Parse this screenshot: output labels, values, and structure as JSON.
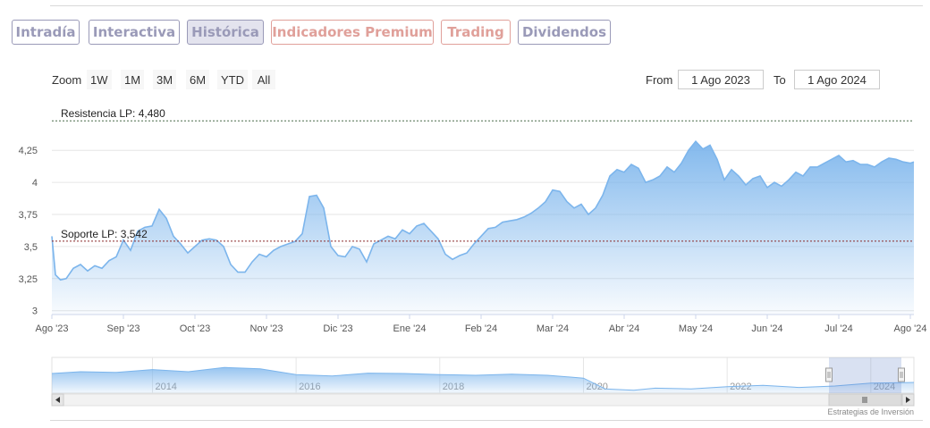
{
  "tabs": [
    {
      "label": "Intradía",
      "color": "#9a9ab8",
      "active": false
    },
    {
      "label": "Interactiva",
      "color": "#9a9ab8",
      "active": false
    },
    {
      "label": "Histórica",
      "color": "#9a9ab8",
      "active": true
    },
    {
      "label": "Indicadores Premium",
      "color": "#e0a09a",
      "active": false
    },
    {
      "label": "Trading",
      "color": "#e0a09a",
      "active": false
    },
    {
      "label": "Dividendos",
      "color": "#9a9ab8",
      "active": false
    }
  ],
  "range_selector": {
    "zoom_label": "Zoom",
    "buttons": [
      "1W",
      "1M",
      "3M",
      "6M",
      "YTD",
      "All"
    ],
    "from_label": "From",
    "from_value": "1 Ago 2023",
    "to_label": "To",
    "to_value": "1 Ago 2024"
  },
  "credit": "Estrategias de Inversión",
  "colors": {
    "line": "#7cb5ec",
    "fill_top": "#7cb5ec",
    "fill_bottom": "#ffffff"
  },
  "chart_data": [
    {
      "type": "area",
      "x_labels": [
        "Ago '23",
        "Sep '23",
        "Oct '23",
        "Nov '23",
        "Dic '23",
        "Ene '24",
        "Feb '24",
        "Mar '24",
        "Abr '24",
        "May '24",
        "Jun '24",
        "Jul '24",
        "Ago '24"
      ],
      "ylim": [
        2.97,
        4.6
      ],
      "y_ticks": [
        3,
        3.25,
        3.5,
        3.75,
        4,
        4.25
      ],
      "y_tick_labels": [
        "3",
        "3,25",
        "3,5",
        "3,75",
        "4",
        "4,25"
      ],
      "grid": true,
      "legend": "none",
      "annotations": [
        {
          "label": "Resistencia LP: 4,480",
          "value": 4.48,
          "style": "dashed"
        },
        {
          "label": "Soporte LP: 3,542",
          "value": 3.542,
          "style": "dashed"
        }
      ],
      "x": [
        0,
        0.05,
        0.12,
        0.2,
        0.3,
        0.4,
        0.5,
        0.6,
        0.7,
        0.8,
        0.9,
        1.0,
        1.1,
        1.2,
        1.3,
        1.4,
        1.5,
        1.6,
        1.7,
        1.8,
        1.9,
        2.0,
        2.1,
        2.2,
        2.3,
        2.4,
        2.5,
        2.6,
        2.7,
        2.8,
        2.9,
        3.0,
        3.1,
        3.2,
        3.3,
        3.4,
        3.5,
        3.6,
        3.7,
        3.8,
        3.9,
        4.0,
        4.1,
        4.2,
        4.3,
        4.4,
        4.5,
        4.6,
        4.7,
        4.8,
        4.9,
        5.0,
        5.1,
        5.2,
        5.3,
        5.4,
        5.5,
        5.6,
        5.7,
        5.8,
        5.9,
        6.0,
        6.1,
        6.2,
        6.3,
        6.4,
        6.5,
        6.6,
        6.7,
        6.8,
        6.9,
        7.0,
        7.1,
        7.2,
        7.3,
        7.4,
        7.5,
        7.6,
        7.7,
        7.8,
        7.9,
        8.0,
        8.1,
        8.2,
        8.3,
        8.4,
        8.5,
        8.6,
        8.7,
        8.8,
        8.9,
        9.0,
        9.1,
        9.2,
        9.3,
        9.4,
        9.5,
        9.6,
        9.7,
        9.8,
        9.9,
        10.0,
        10.1,
        10.2,
        10.3,
        10.4,
        10.5,
        10.6,
        10.7,
        10.8,
        10.9,
        11.0,
        11.1,
        11.2,
        11.3,
        11.4,
        11.5,
        11.6,
        11.7,
        11.8,
        11.9,
        12.0,
        12.05
      ],
      "values": [
        3.58,
        3.28,
        3.24,
        3.25,
        3.33,
        3.36,
        3.31,
        3.35,
        3.33,
        3.39,
        3.42,
        3.55,
        3.47,
        3.62,
        3.65,
        3.66,
        3.79,
        3.72,
        3.58,
        3.52,
        3.45,
        3.5,
        3.55,
        3.56,
        3.55,
        3.5,
        3.36,
        3.3,
        3.3,
        3.38,
        3.44,
        3.42,
        3.47,
        3.5,
        3.52,
        3.54,
        3.6,
        3.89,
        3.9,
        3.8,
        3.5,
        3.43,
        3.42,
        3.5,
        3.48,
        3.38,
        3.52,
        3.55,
        3.58,
        3.56,
        3.63,
        3.6,
        3.66,
        3.68,
        3.62,
        3.56,
        3.44,
        3.4,
        3.43,
        3.45,
        3.52,
        3.58,
        3.64,
        3.65,
        3.69,
        3.7,
        3.71,
        3.73,
        3.76,
        3.8,
        3.85,
        3.94,
        3.93,
        3.85,
        3.8,
        3.83,
        3.75,
        3.8,
        3.9,
        4.05,
        4.1,
        4.08,
        4.14,
        4.11,
        4.0,
        4.02,
        4.05,
        4.12,
        4.08,
        4.15,
        4.25,
        4.32,
        4.26,
        4.29,
        4.18,
        4.02,
        4.1,
        4.05,
        3.98,
        4.03,
        4.05,
        3.96,
        4.0,
        3.97,
        4.02,
        4.08,
        4.05,
        4.12,
        4.12,
        4.15,
        4.18,
        4.21,
        4.16,
        4.17,
        4.14,
        4.14,
        4.12,
        4.16,
        4.19,
        4.18,
        4.16,
        4.15,
        4.16
      ]
    },
    {
      "type": "area",
      "x_labels": [
        "2014",
        "2016",
        "2018",
        "2020",
        "2022",
        "2024"
      ],
      "note_type": "navigator",
      "x": [
        2012.6,
        2013.0,
        2013.5,
        2014.0,
        2014.5,
        2015.0,
        2015.5,
        2016.0,
        2016.5,
        2017.0,
        2017.5,
        2018.0,
        2018.5,
        2019.0,
        2019.5,
        2020.0,
        2020.3,
        2020.7,
        2021.0,
        2021.5,
        2022.0,
        2022.5,
        2023.0,
        2023.5,
        2024.0,
        2024.6
      ],
      "values": [
        0.55,
        0.6,
        0.58,
        0.66,
        0.6,
        0.72,
        0.68,
        0.52,
        0.48,
        0.56,
        0.55,
        0.52,
        0.5,
        0.53,
        0.5,
        0.42,
        0.12,
        0.08,
        0.14,
        0.12,
        0.18,
        0.22,
        0.16,
        0.2,
        0.28,
        0.3
      ]
    }
  ]
}
